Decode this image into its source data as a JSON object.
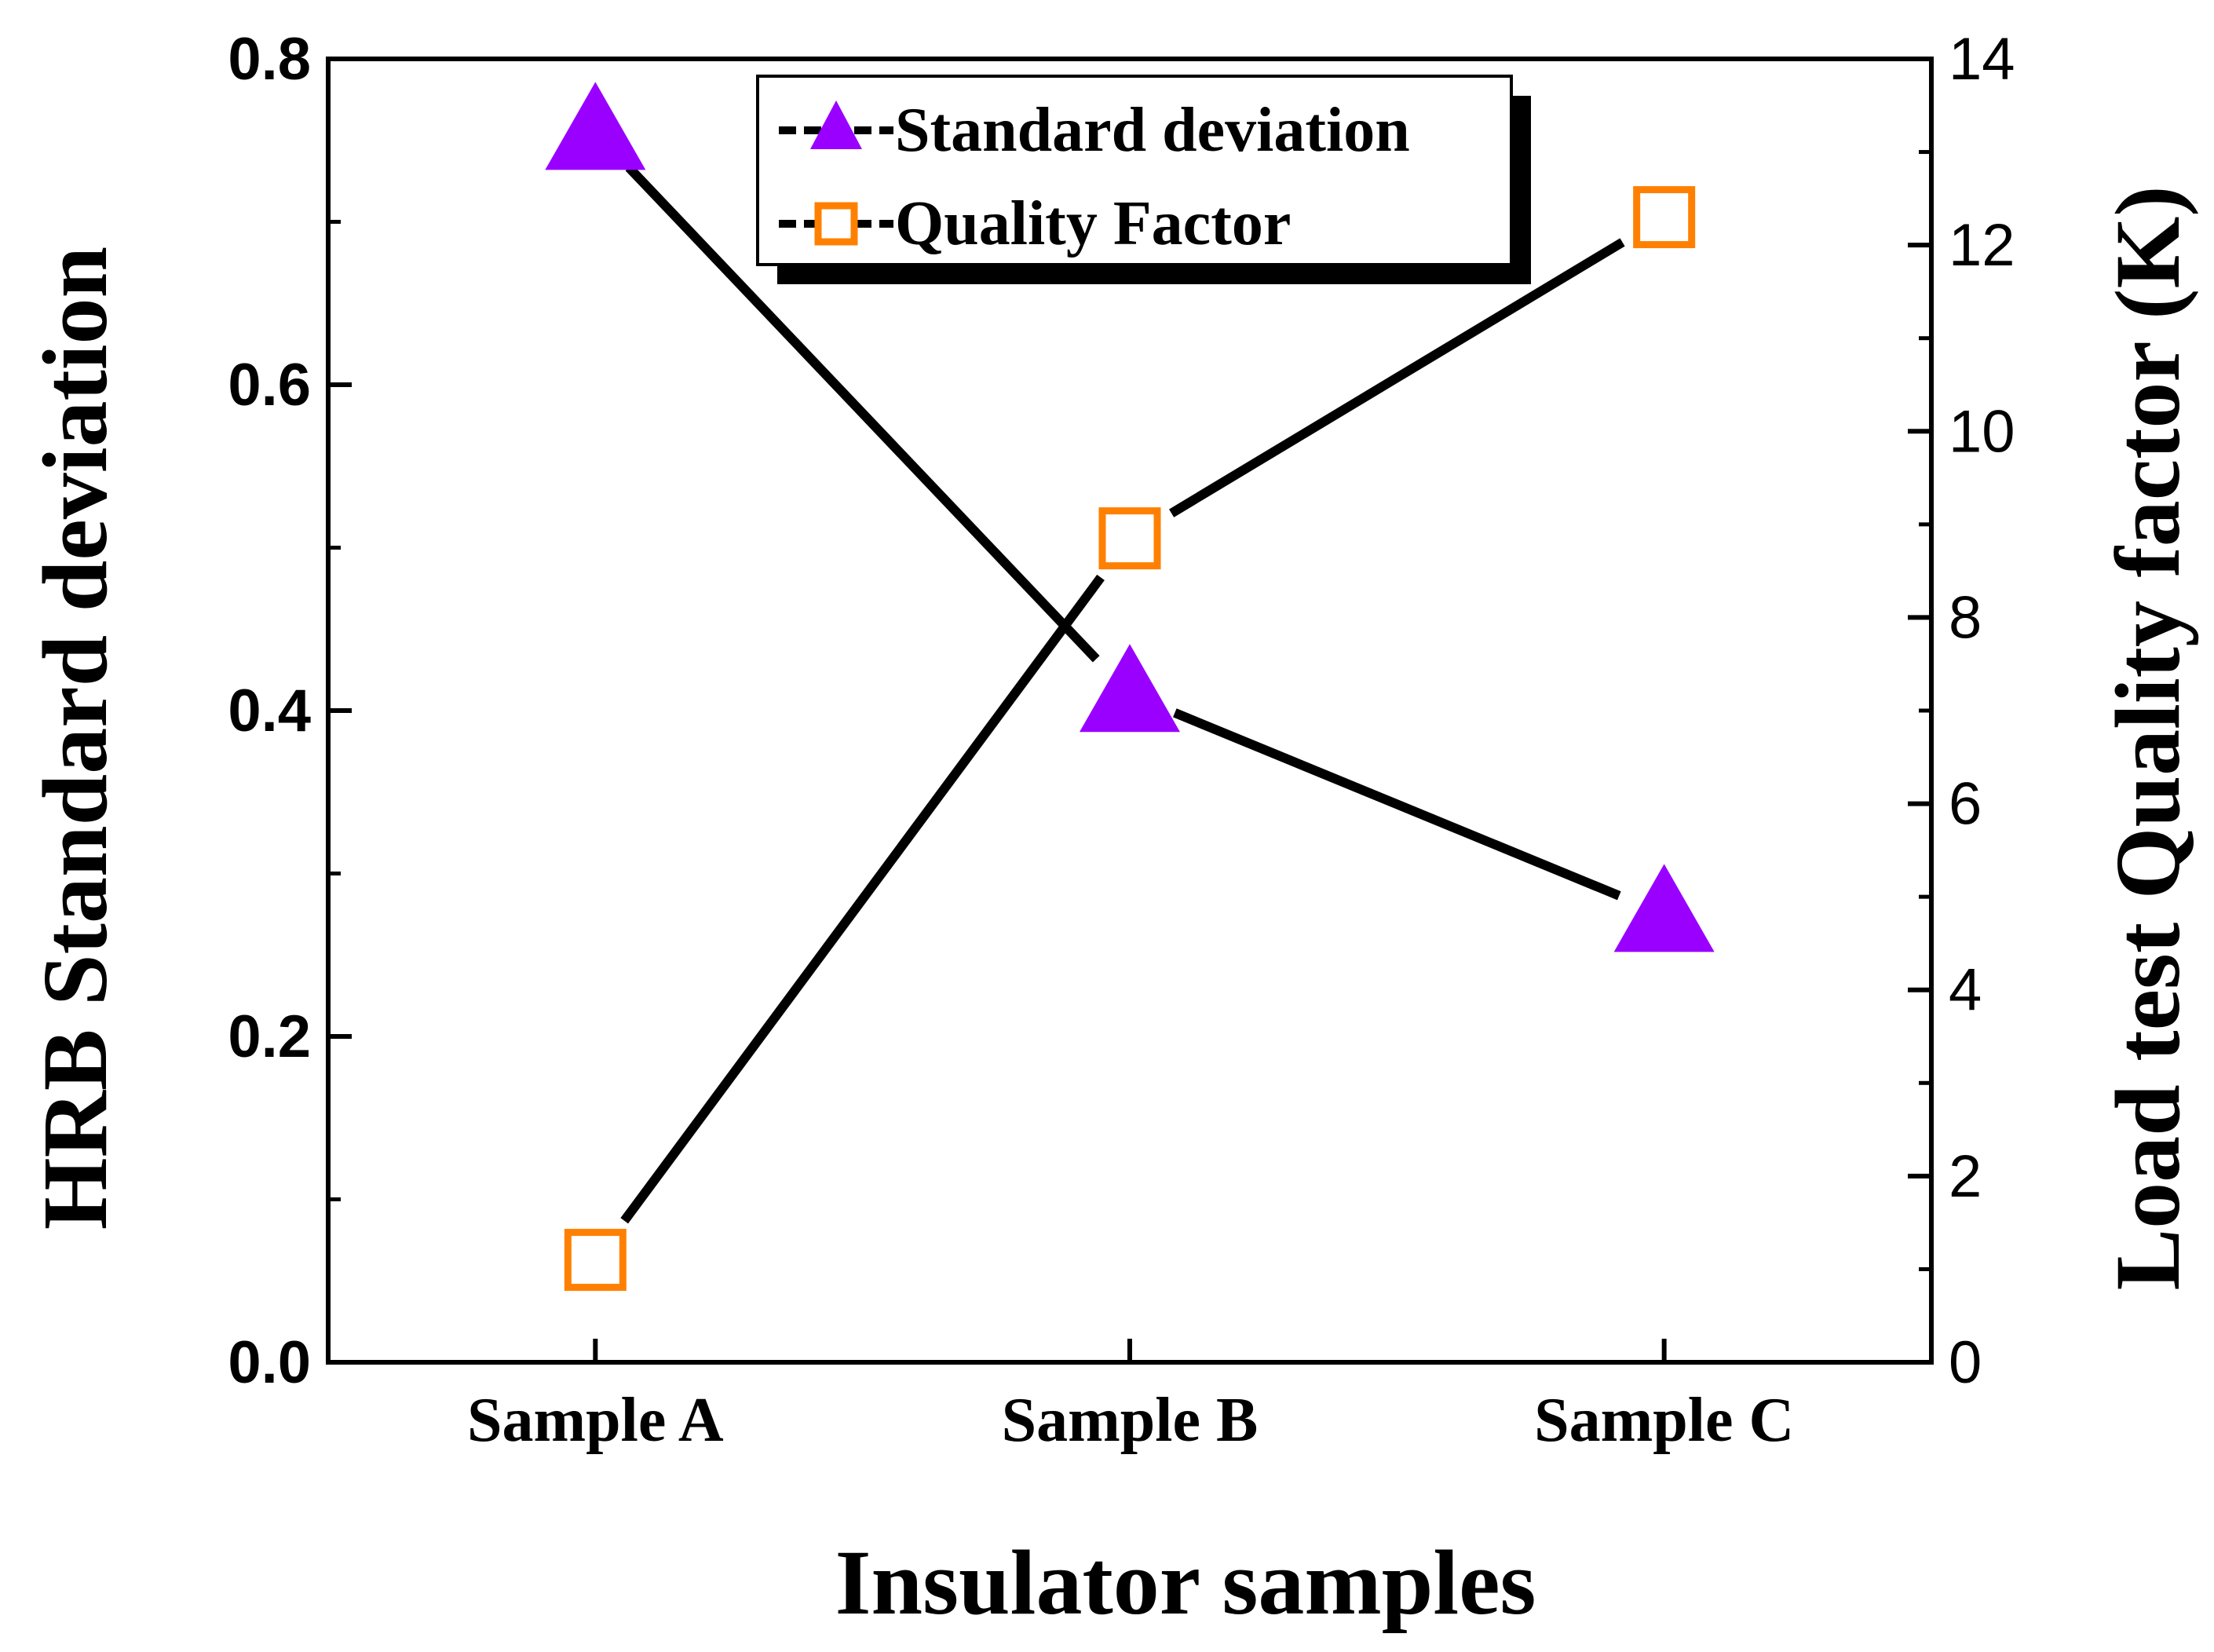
{
  "chart_data": {
    "type": "line",
    "categories": [
      "Sample A",
      "Sample B",
      "Sample C"
    ],
    "xlabel": "Insulator samples",
    "ylabel_left": "HRB Standard deviation",
    "ylabel_right": "Load test Quality factor (K)",
    "ylim_left": [
      0,
      0.8
    ],
    "ylim_right": [
      0,
      14
    ],
    "yticks_left": [
      "0.0",
      "0.2",
      "0.4",
      "0.6",
      "0.8"
    ],
    "yticks_right": [
      "0",
      "2",
      "4",
      "6",
      "8",
      "10",
      "12",
      "14"
    ],
    "grid": false,
    "legend_position": "top-center",
    "series": [
      {
        "name": "Standard deviation",
        "axis": "left",
        "marker": "triangle",
        "color": "#9900ff",
        "values": [
          0.755,
          0.41,
          0.275
        ]
      },
      {
        "name": "Quality Factor",
        "axis": "right",
        "marker": "square-open",
        "color": "#ff8000",
        "values": [
          1.1,
          8.85,
          12.3
        ]
      }
    ]
  }
}
